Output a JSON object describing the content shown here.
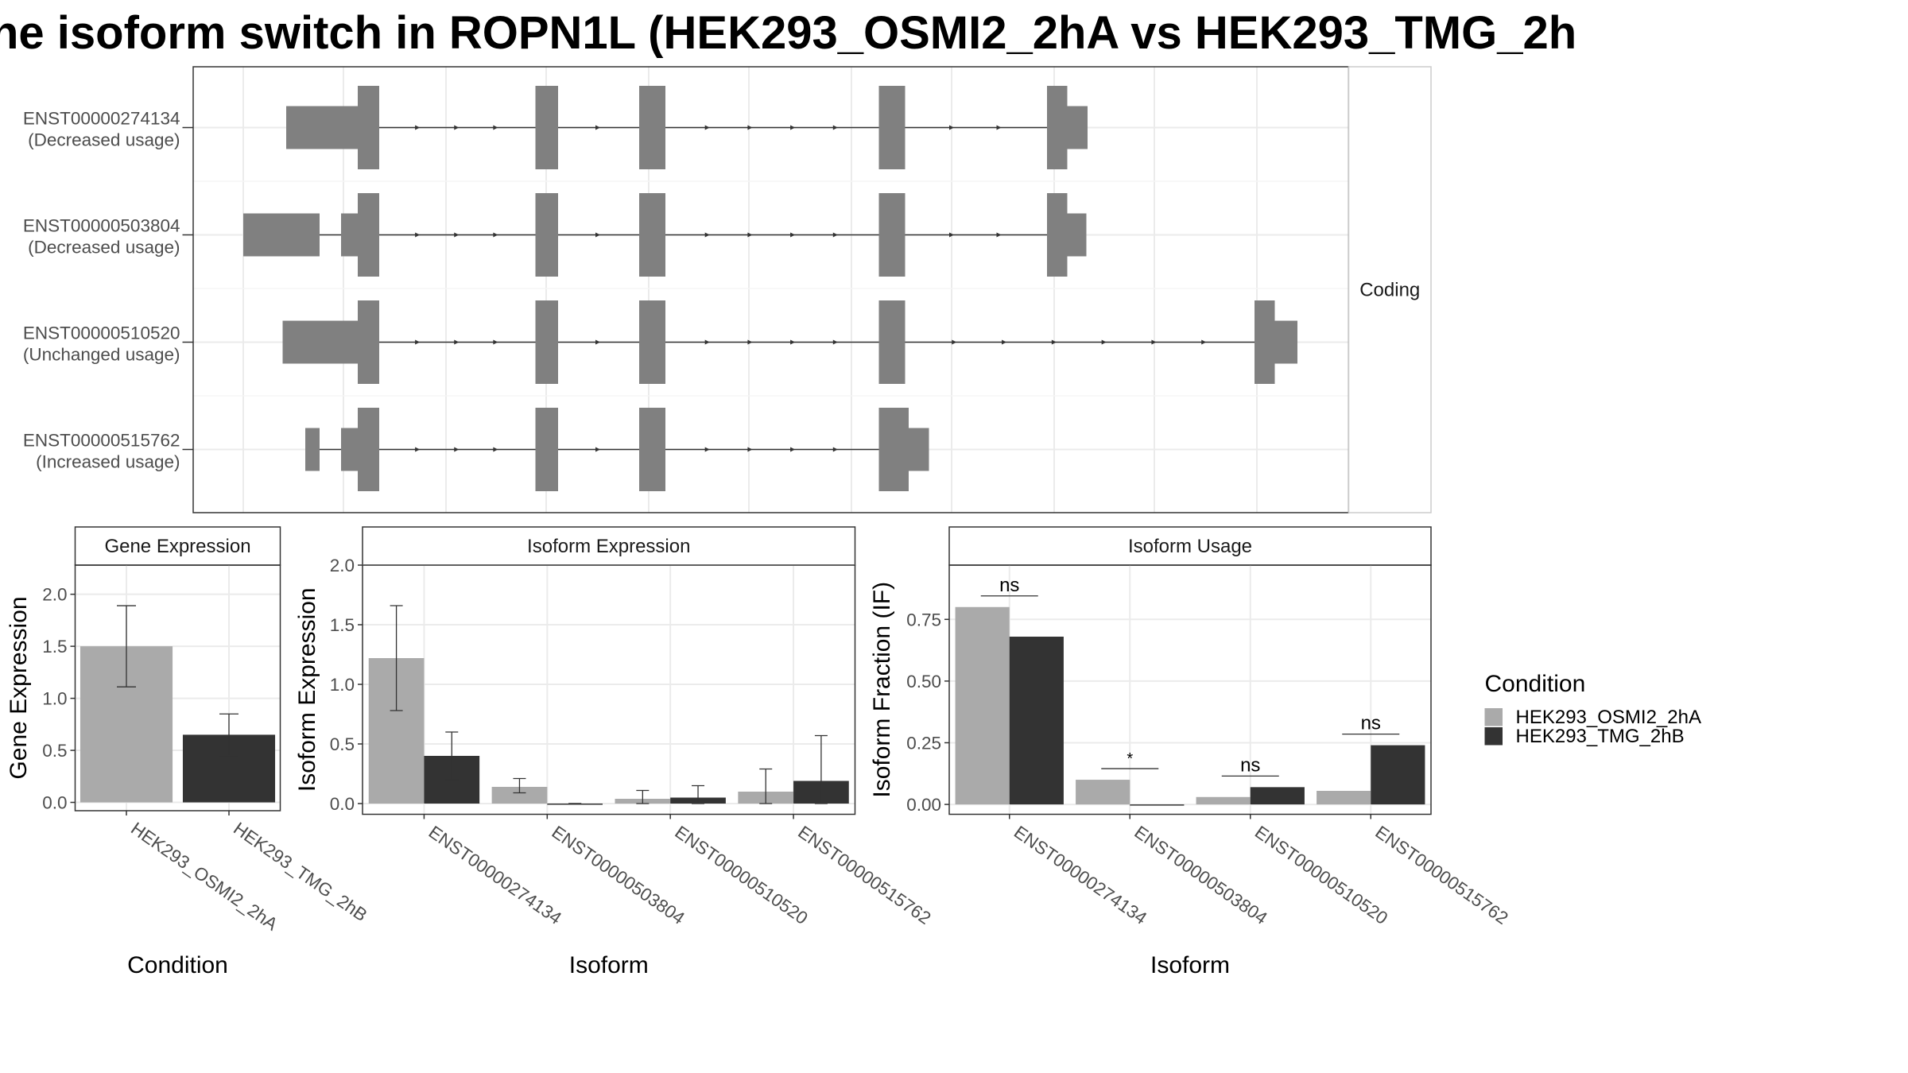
{
  "title": "ne isoform switch in ROPN1L (HEK293_OSMI2_2hA vs HEK293_TMG_2h",
  "colors": {
    "exon": "#808080",
    "cond1": "#aaaaaa",
    "cond2": "#333333",
    "grid": "#ebebeb",
    "border": "#333333"
  },
  "chart_data": [
    {
      "type": "transcript_structure",
      "strip_label": "Coding",
      "isoforms": [
        {
          "id": "ENST00000274134",
          "usage": "(Decreased usage)",
          "exons": [
            {
              "start": 240,
              "end": 300,
              "kind": "utr"
            },
            {
              "start": 300,
              "end": 318,
              "kind": "cds"
            },
            {
              "start": 449,
              "end": 468,
              "kind": "cds"
            },
            {
              "start": 536,
              "end": 558,
              "kind": "cds"
            },
            {
              "start": 737,
              "end": 759,
              "kind": "cds"
            },
            {
              "start": 878,
              "end": 895,
              "kind": "cds"
            },
            {
              "start": 895,
              "end": 912,
              "kind": "utr"
            }
          ]
        },
        {
          "id": "ENST00000503804",
          "usage": "(Decreased usage)",
          "exons": [
            {
              "start": 204,
              "end": 268,
              "kind": "utr"
            },
            {
              "start": 286,
              "end": 300,
              "kind": "utr"
            },
            {
              "start": 300,
              "end": 318,
              "kind": "cds"
            },
            {
              "start": 449,
              "end": 468,
              "kind": "cds"
            },
            {
              "start": 536,
              "end": 558,
              "kind": "cds"
            },
            {
              "start": 737,
              "end": 759,
              "kind": "cds"
            },
            {
              "start": 878,
              "end": 895,
              "kind": "cds"
            },
            {
              "start": 895,
              "end": 911,
              "kind": "utr"
            }
          ]
        },
        {
          "id": "ENST00000510520",
          "usage": "(Unchanged usage)",
          "exons": [
            {
              "start": 237,
              "end": 300,
              "kind": "utr"
            },
            {
              "start": 300,
              "end": 318,
              "kind": "cds"
            },
            {
              "start": 449,
              "end": 468,
              "kind": "cds"
            },
            {
              "start": 536,
              "end": 558,
              "kind": "cds"
            },
            {
              "start": 737,
              "end": 759,
              "kind": "cds"
            },
            {
              "start": 1052,
              "end": 1069,
              "kind": "cds"
            },
            {
              "start": 1069,
              "end": 1088,
              "kind": "utr"
            }
          ]
        },
        {
          "id": "ENST00000515762",
          "usage": "(Increased usage)",
          "exons": [
            {
              "start": 256,
              "end": 268,
              "kind": "utr"
            },
            {
              "start": 286,
              "end": 300,
              "kind": "utr"
            },
            {
              "start": 300,
              "end": 318,
              "kind": "cds"
            },
            {
              "start": 449,
              "end": 468,
              "kind": "cds"
            },
            {
              "start": 536,
              "end": 558,
              "kind": "cds"
            },
            {
              "start": 737,
              "end": 762,
              "kind": "cds"
            },
            {
              "start": 762,
              "end": 779,
              "kind": "utr"
            }
          ]
        }
      ]
    },
    {
      "type": "bar",
      "strip_title": "Gene Expression",
      "xlabel": "Condition",
      "ylabel": "Gene Expression",
      "categories": [
        "HEK293_OSMI2_2hA",
        "HEK293_TMG_2hB"
      ],
      "values": [
        1.5,
        0.65
      ],
      "error_low": [
        1.11,
        0.45
      ],
      "error_high": [
        1.89,
        0.85
      ],
      "ylim": [
        -0.08,
        2.28
      ],
      "yticks": [
        "0.0",
        "0.5",
        "1.0",
        "1.5",
        "2.0"
      ]
    },
    {
      "type": "bar",
      "strip_title": "Isoform Expression",
      "xlabel": "Isoform",
      "ylabel": "Isoform Expression",
      "categories": [
        "ENST00000274134",
        "ENST00000503804",
        "ENST00000510520",
        "ENST00000515762"
      ],
      "series": [
        {
          "name": "HEK293_OSMI2_2hA",
          "values": [
            1.22,
            0.14,
            0.04,
            0.1
          ],
          "error_low": [
            0.78,
            0.09,
            0.0,
            0.0
          ],
          "error_high": [
            1.66,
            0.21,
            0.11,
            0.29
          ]
        },
        {
          "name": "HEK293_TMG_2hB",
          "values": [
            0.4,
            0.0,
            0.05,
            0.19
          ],
          "error_low": [
            0.2,
            0.0,
            0.0,
            0.0
          ],
          "error_high": [
            0.6,
            0.0,
            0.15,
            0.57
          ]
        }
      ],
      "ylim": [
        -0.09,
        2.0
      ],
      "yticks": [
        "0.0",
        "0.5",
        "1.0",
        "1.5",
        "2.0"
      ]
    },
    {
      "type": "bar",
      "strip_title": "Isoform Usage",
      "xlabel": "Isoform",
      "ylabel": "Isoform Fraction (IF)",
      "categories": [
        "ENST00000274134",
        "ENST00000503804",
        "ENST00000510520",
        "ENST00000515762"
      ],
      "series": [
        {
          "name": "HEK293_OSMI2_2hA",
          "values": [
            0.8,
            0.1,
            0.03,
            0.055
          ]
        },
        {
          "name": "HEK293_TMG_2hB",
          "values": [
            0.68,
            0.0,
            0.07,
            0.24
          ]
        }
      ],
      "significance": [
        "ns",
        "*",
        "ns",
        "ns"
      ],
      "ylim": [
        -0.04,
        0.97
      ],
      "yticks": [
        "0.00",
        "0.25",
        "0.50",
        "0.75"
      ]
    }
  ],
  "legend": {
    "title": "Condition",
    "items": [
      "HEK293_OSMI2_2hA",
      "HEK293_TMG_2hB"
    ]
  }
}
